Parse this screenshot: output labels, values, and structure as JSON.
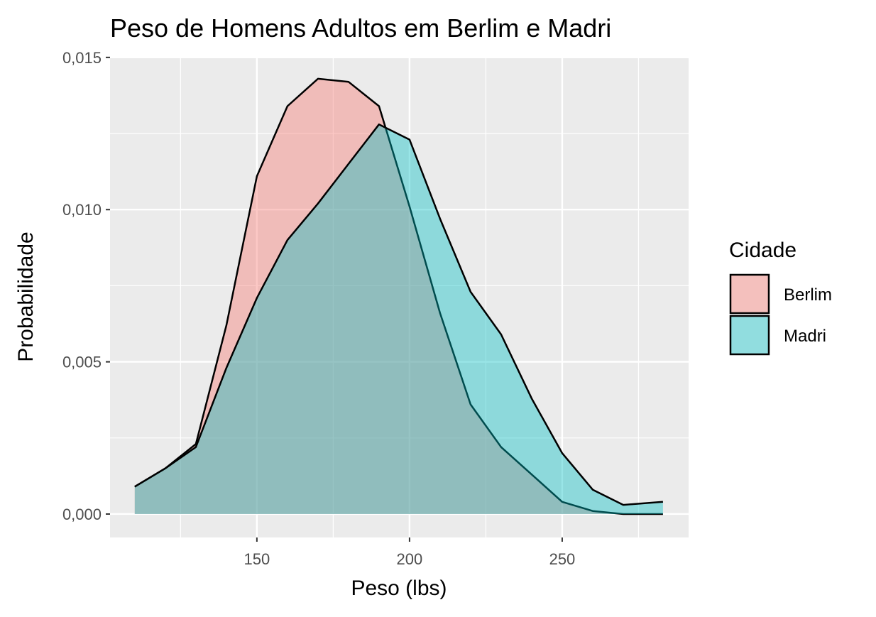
{
  "chart_data": {
    "type": "density",
    "title": "Peso de Homens Adultos em Berlim e Madri",
    "x_label": "Peso (lbs)",
    "y_label": "Probabilidade",
    "legend_title": "Cidade",
    "x": [
      110,
      120,
      130,
      140,
      150,
      160,
      170,
      180,
      190,
      200,
      210,
      220,
      230,
      240,
      250,
      260,
      270,
      283
    ],
    "series": [
      {
        "name": "Berlim",
        "color": "#F8766D",
        "values": [
          0.0009,
          0.0015,
          0.0023,
          0.0062,
          0.0111,
          0.0134,
          0.0143,
          0.0142,
          0.0134,
          0.0101,
          0.0066,
          0.0036,
          0.0022,
          0.0013,
          0.0004,
          0.0001,
          0.0,
          0.0
        ]
      },
      {
        "name": "Madri",
        "color": "#00BFC4",
        "values": [
          0.0009,
          0.0015,
          0.0022,
          0.0048,
          0.0071,
          0.009,
          0.0102,
          0.0115,
          0.0128,
          0.0123,
          0.0097,
          0.0073,
          0.0059,
          0.0038,
          0.002,
          0.0008,
          0.0003,
          0.0004
        ]
      }
    ],
    "xlim": [
      101.9,
      291.4
    ],
    "ylim": [
      -0.00077,
      0.01502
    ],
    "xticks": [
      150,
      200,
      250
    ],
    "x_minor_ticks": [
      125,
      175,
      225,
      275
    ],
    "yticks": [
      {
        "value": 0,
        "label": "0,000"
      },
      {
        "value": 0.005,
        "label": "0,005"
      },
      {
        "value": 0.01,
        "label": "0,010"
      },
      {
        "value": 0.015,
        "label": "0,015"
      }
    ],
    "y_minor_ticks": [
      0.0025,
      0.0075,
      0.0125
    ],
    "grid": true,
    "legend_position": "right"
  }
}
